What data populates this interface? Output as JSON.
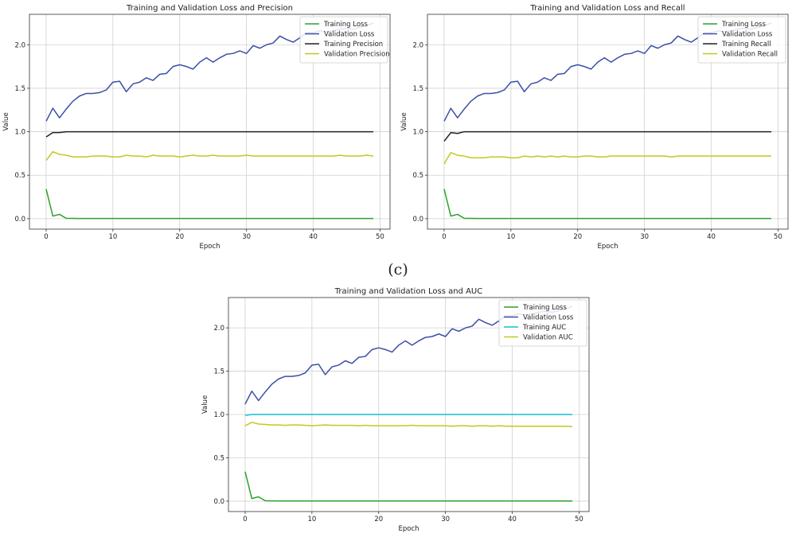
{
  "caption": "(c)",
  "colors": {
    "training_loss": "#2ca02c",
    "validation_loss": "#3a4fa8",
    "training_precision": "#222222",
    "training_recall": "#222222",
    "training_auc": "#17becf",
    "validation_metric": "#c6c622"
  },
  "chart_data": [
    {
      "type": "line",
      "title": "Training and Validation Loss and Precision",
      "xlabel": "Epoch",
      "ylabel": "Value",
      "xlim": [
        -2.5,
        51.5
      ],
      "ylim": [
        -0.12,
        2.35
      ],
      "xticks": [
        0,
        10,
        20,
        30,
        40,
        50
      ],
      "yticks": [
        0.0,
        0.5,
        1.0,
        1.5,
        2.0
      ],
      "grid": true,
      "legend_position": "top-right",
      "x": [
        0,
        1,
        2,
        3,
        4,
        5,
        6,
        7,
        8,
        9,
        10,
        11,
        12,
        13,
        14,
        15,
        16,
        17,
        18,
        19,
        20,
        21,
        22,
        23,
        24,
        25,
        26,
        27,
        28,
        29,
        30,
        31,
        32,
        33,
        34,
        35,
        36,
        37,
        38,
        39,
        40,
        41,
        42,
        43,
        44,
        45,
        46,
        47,
        48,
        49
      ],
      "series": [
        {
          "name": "Training Loss",
          "color_key": "training_loss",
          "values": [
            0.34,
            0.03,
            0.05,
            0.005,
            0.003,
            0.002,
            0.002,
            0.002,
            0.002,
            0.002,
            0.002,
            0.002,
            0.002,
            0.002,
            0.002,
            0.002,
            0.002,
            0.002,
            0.002,
            0.002,
            0.002,
            0.002,
            0.002,
            0.002,
            0.002,
            0.002,
            0.002,
            0.002,
            0.002,
            0.002,
            0.002,
            0.002,
            0.002,
            0.002,
            0.002,
            0.002,
            0.002,
            0.002,
            0.002,
            0.002,
            0.002,
            0.002,
            0.002,
            0.002,
            0.002,
            0.002,
            0.002,
            0.002,
            0.002,
            0.002
          ]
        },
        {
          "name": "Validation Loss",
          "color_key": "validation_loss",
          "values": [
            1.12,
            1.27,
            1.16,
            1.26,
            1.35,
            1.41,
            1.44,
            1.44,
            1.45,
            1.48,
            1.57,
            1.58,
            1.46,
            1.55,
            1.57,
            1.62,
            1.59,
            1.66,
            1.67,
            1.75,
            1.77,
            1.75,
            1.72,
            1.8,
            1.85,
            1.8,
            1.85,
            1.89,
            1.9,
            1.93,
            1.9,
            1.99,
            1.96,
            2.0,
            2.02,
            2.1,
            2.06,
            2.03,
            2.08,
            2.14,
            2.14,
            2.16,
            2.15,
            2.16,
            2.18,
            2.19,
            2.18,
            2.2,
            2.22,
            2.25
          ]
        },
        {
          "name": "Training Precision",
          "color_key": "training_precision",
          "values": [
            0.94,
            0.99,
            0.99,
            1.0,
            1.0,
            1.0,
            1.0,
            1.0,
            1.0,
            1.0,
            1.0,
            1.0,
            1.0,
            1.0,
            1.0,
            1.0,
            1.0,
            1.0,
            1.0,
            1.0,
            1.0,
            1.0,
            1.0,
            1.0,
            1.0,
            1.0,
            1.0,
            1.0,
            1.0,
            1.0,
            1.0,
            1.0,
            1.0,
            1.0,
            1.0,
            1.0,
            1.0,
            1.0,
            1.0,
            1.0,
            1.0,
            1.0,
            1.0,
            1.0,
            1.0,
            1.0,
            1.0,
            1.0,
            1.0,
            1.0
          ]
        },
        {
          "name": "Validation Precision",
          "color_key": "validation_metric",
          "values": [
            0.67,
            0.77,
            0.74,
            0.73,
            0.71,
            0.71,
            0.71,
            0.72,
            0.72,
            0.72,
            0.71,
            0.71,
            0.73,
            0.72,
            0.72,
            0.71,
            0.73,
            0.72,
            0.72,
            0.72,
            0.71,
            0.72,
            0.73,
            0.72,
            0.72,
            0.73,
            0.72,
            0.72,
            0.72,
            0.72,
            0.73,
            0.72,
            0.72,
            0.72,
            0.72,
            0.72,
            0.72,
            0.72,
            0.72,
            0.72,
            0.72,
            0.72,
            0.72,
            0.72,
            0.73,
            0.72,
            0.72,
            0.72,
            0.73,
            0.72
          ]
        }
      ]
    },
    {
      "type": "line",
      "title": "Training and Validation Loss and Recall",
      "xlabel": "Epoch",
      "ylabel": "Value",
      "xlim": [
        -2.5,
        51.5
      ],
      "ylim": [
        -0.12,
        2.35
      ],
      "xticks": [
        0,
        10,
        20,
        30,
        40,
        50
      ],
      "yticks": [
        0.0,
        0.5,
        1.0,
        1.5,
        2.0
      ],
      "grid": true,
      "legend_position": "top-right",
      "x": [
        0,
        1,
        2,
        3,
        4,
        5,
        6,
        7,
        8,
        9,
        10,
        11,
        12,
        13,
        14,
        15,
        16,
        17,
        18,
        19,
        20,
        21,
        22,
        23,
        24,
        25,
        26,
        27,
        28,
        29,
        30,
        31,
        32,
        33,
        34,
        35,
        36,
        37,
        38,
        39,
        40,
        41,
        42,
        43,
        44,
        45,
        46,
        47,
        48,
        49
      ],
      "series": [
        {
          "name": "Training Loss",
          "color_key": "training_loss",
          "values": [
            0.34,
            0.03,
            0.05,
            0.005,
            0.003,
            0.002,
            0.002,
            0.002,
            0.002,
            0.002,
            0.002,
            0.002,
            0.002,
            0.002,
            0.002,
            0.002,
            0.002,
            0.002,
            0.002,
            0.002,
            0.002,
            0.002,
            0.002,
            0.002,
            0.002,
            0.002,
            0.002,
            0.002,
            0.002,
            0.002,
            0.002,
            0.002,
            0.002,
            0.002,
            0.002,
            0.002,
            0.002,
            0.002,
            0.002,
            0.002,
            0.002,
            0.002,
            0.002,
            0.002,
            0.002,
            0.002,
            0.002,
            0.002,
            0.002,
            0.002
          ]
        },
        {
          "name": "Validation Loss",
          "color_key": "validation_loss",
          "values": [
            1.12,
            1.27,
            1.16,
            1.26,
            1.35,
            1.41,
            1.44,
            1.44,
            1.45,
            1.48,
            1.57,
            1.58,
            1.46,
            1.55,
            1.57,
            1.62,
            1.59,
            1.66,
            1.67,
            1.75,
            1.77,
            1.75,
            1.72,
            1.8,
            1.85,
            1.8,
            1.85,
            1.89,
            1.9,
            1.93,
            1.9,
            1.99,
            1.96,
            2.0,
            2.02,
            2.1,
            2.06,
            2.03,
            2.08,
            2.14,
            2.14,
            2.16,
            2.15,
            2.16,
            2.18,
            2.19,
            2.18,
            2.2,
            2.22,
            2.25
          ]
        },
        {
          "name": "Training Recall",
          "color_key": "training_recall",
          "values": [
            0.89,
            0.99,
            0.98,
            1.0,
            1.0,
            1.0,
            1.0,
            1.0,
            1.0,
            1.0,
            1.0,
            1.0,
            1.0,
            1.0,
            1.0,
            1.0,
            1.0,
            1.0,
            1.0,
            1.0,
            1.0,
            1.0,
            1.0,
            1.0,
            1.0,
            1.0,
            1.0,
            1.0,
            1.0,
            1.0,
            1.0,
            1.0,
            1.0,
            1.0,
            1.0,
            1.0,
            1.0,
            1.0,
            1.0,
            1.0,
            1.0,
            1.0,
            1.0,
            1.0,
            1.0,
            1.0,
            1.0,
            1.0,
            1.0,
            1.0
          ]
        },
        {
          "name": "Validation Recall",
          "color_key": "validation_metric",
          "values": [
            0.63,
            0.76,
            0.73,
            0.72,
            0.7,
            0.7,
            0.7,
            0.71,
            0.71,
            0.71,
            0.7,
            0.7,
            0.72,
            0.71,
            0.72,
            0.71,
            0.72,
            0.71,
            0.72,
            0.71,
            0.71,
            0.72,
            0.72,
            0.71,
            0.71,
            0.72,
            0.72,
            0.72,
            0.72,
            0.72,
            0.72,
            0.72,
            0.72,
            0.72,
            0.71,
            0.72,
            0.72,
            0.72,
            0.72,
            0.72,
            0.72,
            0.72,
            0.72,
            0.72,
            0.72,
            0.72,
            0.72,
            0.72,
            0.72,
            0.72
          ]
        }
      ]
    },
    {
      "type": "line",
      "title": "Training and Validation Loss and AUC",
      "xlabel": "Epoch",
      "ylabel": "Value",
      "xlim": [
        -2.5,
        51.5
      ],
      "ylim": [
        -0.12,
        2.35
      ],
      "xticks": [
        0,
        10,
        20,
        30,
        40,
        50
      ],
      "yticks": [
        0.0,
        0.5,
        1.0,
        1.5,
        2.0
      ],
      "grid": true,
      "legend_position": "top-right",
      "x": [
        0,
        1,
        2,
        3,
        4,
        5,
        6,
        7,
        8,
        9,
        10,
        11,
        12,
        13,
        14,
        15,
        16,
        17,
        18,
        19,
        20,
        21,
        22,
        23,
        24,
        25,
        26,
        27,
        28,
        29,
        30,
        31,
        32,
        33,
        34,
        35,
        36,
        37,
        38,
        39,
        40,
        41,
        42,
        43,
        44,
        45,
        46,
        47,
        48,
        49
      ],
      "series": [
        {
          "name": "Training Loss",
          "color_key": "training_loss",
          "values": [
            0.34,
            0.03,
            0.05,
            0.005,
            0.003,
            0.002,
            0.002,
            0.002,
            0.002,
            0.002,
            0.002,
            0.002,
            0.002,
            0.002,
            0.002,
            0.002,
            0.002,
            0.002,
            0.002,
            0.002,
            0.002,
            0.002,
            0.002,
            0.002,
            0.002,
            0.002,
            0.002,
            0.002,
            0.002,
            0.002,
            0.002,
            0.002,
            0.002,
            0.002,
            0.002,
            0.002,
            0.002,
            0.002,
            0.002,
            0.002,
            0.002,
            0.002,
            0.002,
            0.002,
            0.002,
            0.002,
            0.002,
            0.002,
            0.002,
            0.002
          ]
        },
        {
          "name": "Validation Loss",
          "color_key": "validation_loss",
          "values": [
            1.12,
            1.27,
            1.16,
            1.26,
            1.35,
            1.41,
            1.44,
            1.44,
            1.45,
            1.48,
            1.57,
            1.58,
            1.46,
            1.55,
            1.57,
            1.62,
            1.59,
            1.66,
            1.67,
            1.75,
            1.77,
            1.75,
            1.72,
            1.8,
            1.85,
            1.8,
            1.85,
            1.89,
            1.9,
            1.93,
            1.9,
            1.99,
            1.96,
            2.0,
            2.02,
            2.1,
            2.06,
            2.03,
            2.08,
            2.14,
            2.14,
            2.16,
            2.15,
            2.16,
            2.18,
            2.19,
            2.18,
            2.2,
            2.22,
            2.25
          ]
        },
        {
          "name": "Training AUC",
          "color_key": "training_auc",
          "values": [
            0.99,
            1.0,
            1.0,
            1.0,
            1.0,
            1.0,
            1.0,
            1.0,
            1.0,
            1.0,
            1.0,
            1.0,
            1.0,
            1.0,
            1.0,
            1.0,
            1.0,
            1.0,
            1.0,
            1.0,
            1.0,
            1.0,
            1.0,
            1.0,
            1.0,
            1.0,
            1.0,
            1.0,
            1.0,
            1.0,
            1.0,
            1.0,
            1.0,
            1.0,
            1.0,
            1.0,
            1.0,
            1.0,
            1.0,
            1.0,
            1.0,
            1.0,
            1.0,
            1.0,
            1.0,
            1.0,
            1.0,
            1.0,
            1.0,
            1.0
          ]
        },
        {
          "name": "Validation AUC",
          "color_key": "validation_metric",
          "values": [
            0.87,
            0.91,
            0.89,
            0.885,
            0.88,
            0.88,
            0.875,
            0.88,
            0.88,
            0.875,
            0.87,
            0.875,
            0.88,
            0.875,
            0.875,
            0.875,
            0.875,
            0.87,
            0.875,
            0.87,
            0.87,
            0.87,
            0.87,
            0.87,
            0.87,
            0.875,
            0.87,
            0.87,
            0.87,
            0.87,
            0.87,
            0.865,
            0.87,
            0.87,
            0.865,
            0.87,
            0.87,
            0.865,
            0.87,
            0.865,
            0.865,
            0.865,
            0.865,
            0.865,
            0.865,
            0.865,
            0.865,
            0.865,
            0.865,
            0.86
          ]
        }
      ]
    }
  ]
}
